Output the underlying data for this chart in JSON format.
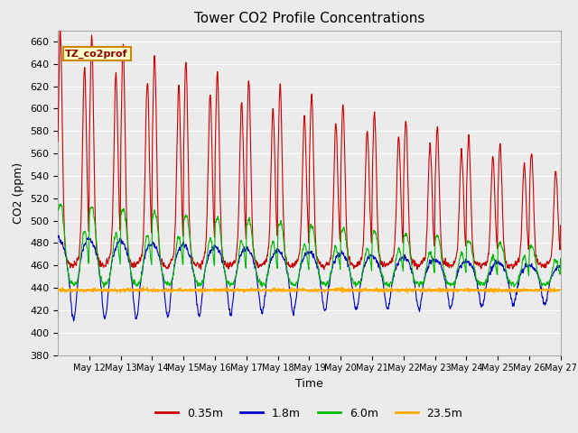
{
  "title": "Tower CO2 Profile Concentrations",
  "xlabel": "Time",
  "ylabel": "CO2 (ppm)",
  "ylim": [
    380,
    670
  ],
  "yticks": [
    380,
    400,
    420,
    440,
    460,
    480,
    500,
    520,
    540,
    560,
    580,
    600,
    620,
    640,
    660
  ],
  "annotation_text": "TZ_co2prof",
  "legend_labels": [
    "0.35m",
    "1.8m",
    "6.0m",
    "23.5m"
  ],
  "line_colors": [
    "#cc0000",
    "#0000cc",
    "#00bb00",
    "#ffaa00"
  ],
  "fig_bg_color": "#ebebeb",
  "plot_bg_color": "#ebebeb",
  "grid_color": "#ffffff",
  "base_co2": 438
}
